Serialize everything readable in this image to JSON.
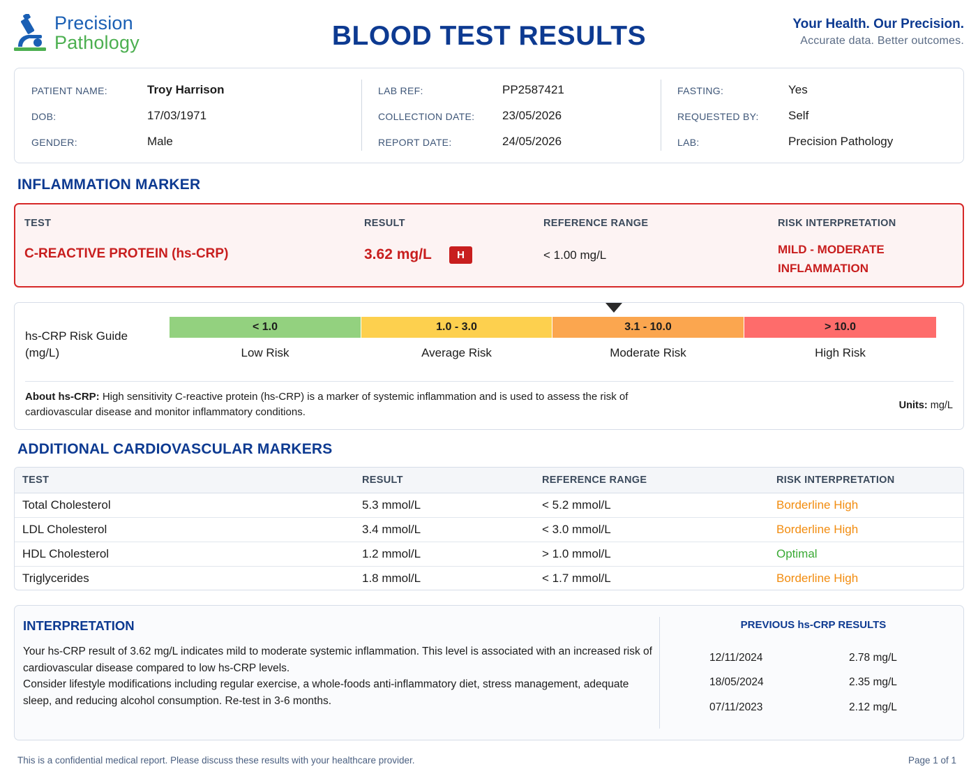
{
  "brand": {
    "name_line1": "Precision",
    "name_line2": "Pathology",
    "tagline": "Your Health. Our Precision.",
    "subtagline": "Accurate data. Better outcomes.",
    "logo_icon": "microscope-icon",
    "colors": {
      "blue": "#1a5fb4",
      "green": "#4caf50",
      "navy": "#0d3a91",
      "alert_red": "#c81e1e"
    }
  },
  "report": {
    "title": "BLOOD TEST RESULTS"
  },
  "patient": {
    "name_label": "PATIENT NAME:",
    "name": "Troy Harrison",
    "dob_label": "DOB:",
    "dob": "17/03/1971",
    "gender_label": "GENDER:",
    "gender": "Male",
    "lab_ref_label": "LAB REF:",
    "lab_ref": "PP2587421",
    "collection_label": "COLLECTION DATE:",
    "collection_date": "23/05/2026",
    "report_label": "REPORT DATE:",
    "report_date": "24/05/2026",
    "fasting_label": "FASTING:",
    "fasting": "Yes",
    "requested_label": "REQUESTED BY:",
    "requested_by": "Self",
    "lab_label": "LAB:",
    "lab": "Precision Pathology"
  },
  "inflammation": {
    "section_title": "INFLAMMATION MARKER",
    "headers": {
      "test": "TEST",
      "result": "RESULT",
      "range": "REFERENCE RANGE",
      "risk": "RISK INTERPRETATION"
    },
    "test": "C-REACTIVE PROTEIN (hs-CRP)",
    "result": "3.62 mg/L",
    "flag": "H",
    "reference": "< 1.00 mg/L",
    "risk_line1": "MILD - MODERATE",
    "risk_line2": "INFLAMMATION"
  },
  "guide": {
    "label_line1": "hs-CRP Risk Guide",
    "label_line2": "(mg/L)",
    "marker_value": 3.62,
    "segments": [
      {
        "range": "< 1.0",
        "label": "Low Risk",
        "color": "#93d17f"
      },
      {
        "range": "1.0 - 3.0",
        "label": "Average Risk",
        "color": "#fdd04e"
      },
      {
        "range": "3.1 - 10.0",
        "label": "Moderate Risk",
        "color": "#fba64f"
      },
      {
        "range": "> 10.0",
        "label": "High Risk",
        "color": "#fe6c6b"
      }
    ],
    "about_bold": "About hs-CRP:",
    "about_text": " High sensitivity C-reactive protein (hs-CRP) is a marker of systemic inflammation and is used to assess the risk of cardiovascular disease and monitor inflammatory conditions.",
    "units_bold": "Units:",
    "units_text": " mg/L"
  },
  "cardio": {
    "section_title": "ADDITIONAL CARDIOVASCULAR MARKERS",
    "headers": {
      "test": "TEST",
      "result": "RESULT",
      "range": "REFERENCE RANGE",
      "risk": "RISK INTERPRETATION"
    },
    "rows": [
      {
        "test": "Total Cholesterol",
        "result": "5.3 mmol/L",
        "range": "< 5.2 mmol/L",
        "risk": "Borderline High",
        "risk_color": "#f28c0f"
      },
      {
        "test": "LDL Cholesterol",
        "result": "3.4 mmol/L",
        "range": "< 3.0 mmol/L",
        "risk": "Borderline High",
        "risk_color": "#f28c0f"
      },
      {
        "test": "HDL Cholesterol",
        "result": "1.2 mmol/L",
        "range": "> 1.0 mmol/L",
        "risk": "Optimal",
        "risk_color": "#3aaa35"
      },
      {
        "test": "Triglycerides",
        "result": "1.8 mmol/L",
        "range": "< 1.7 mmol/L",
        "risk": "Borderline High",
        "risk_color": "#f28c0f"
      }
    ]
  },
  "interpretation": {
    "title": "INTERPRETATION",
    "para1": "Your hs-CRP result of 3.62 mg/L indicates mild to moderate systemic inflammation. This level is associated with an increased risk of cardiovascular disease compared to low hs-CRP levels.",
    "para2": "Consider lifestyle modifications including regular exercise, a whole-foods anti-inflammatory diet, stress management, adequate sleep, and reducing alcohol consumption. Re-test in 3-6 months."
  },
  "previous": {
    "title": "PREVIOUS hs-CRP RESULTS",
    "rows": [
      {
        "date": "12/11/2024",
        "value": "2.78 mg/L"
      },
      {
        "date": "18/05/2024",
        "value": "2.35 mg/L"
      },
      {
        "date": "07/11/2023",
        "value": "2.12 mg/L"
      }
    ]
  },
  "footer": {
    "notice": "This is a confidential medical report. Please discuss these results with your healthcare provider.",
    "page": "Page 1 of 1"
  }
}
